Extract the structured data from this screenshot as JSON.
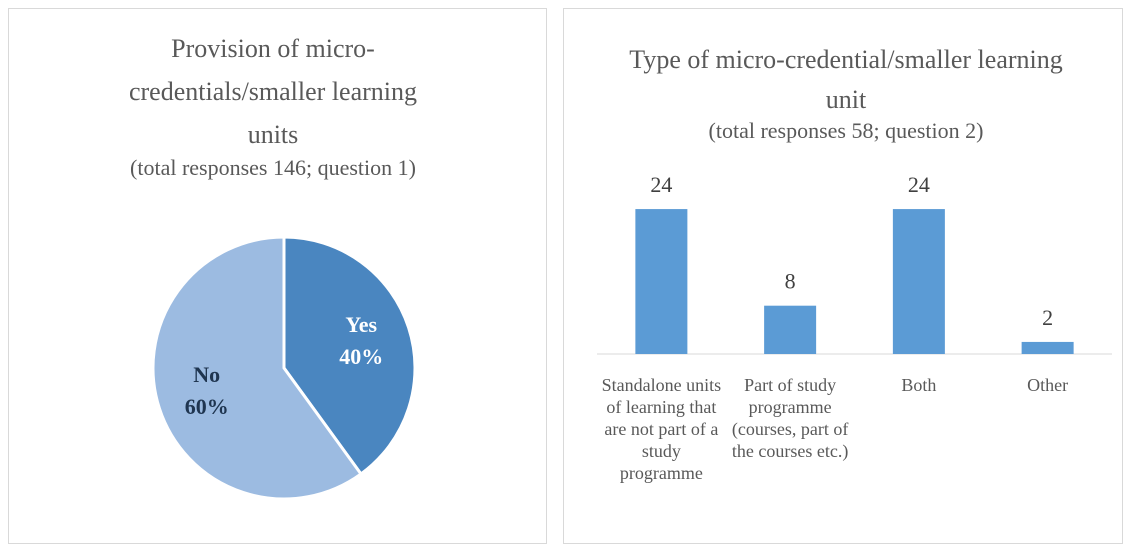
{
  "chart_data": [
    {
      "type": "pie",
      "title": "Provision of micro-credentials/smaller learning units",
      "subtitle": "(total responses 146; question 1)",
      "categories": [
        "Yes",
        "No"
      ],
      "values": [
        40,
        60
      ],
      "value_labels": [
        "40%",
        "60%"
      ],
      "colors": [
        "#4a86c0",
        "#9cbbe1"
      ],
      "label_colors": [
        "#ffffff",
        "#1f3550"
      ]
    },
    {
      "type": "bar",
      "title": "Type of micro-credential/smaller learning unit",
      "subtitle": "(total responses 58; question 2)",
      "categories": [
        "Standalone units of learning that are not part of a study programme",
        "Part of study programme (courses, part of the courses etc.)",
        "Both",
        "Other"
      ],
      "values": [
        24,
        8,
        24,
        2
      ],
      "color": "#5b9bd5",
      "ylim": [
        0,
        26
      ]
    }
  ]
}
